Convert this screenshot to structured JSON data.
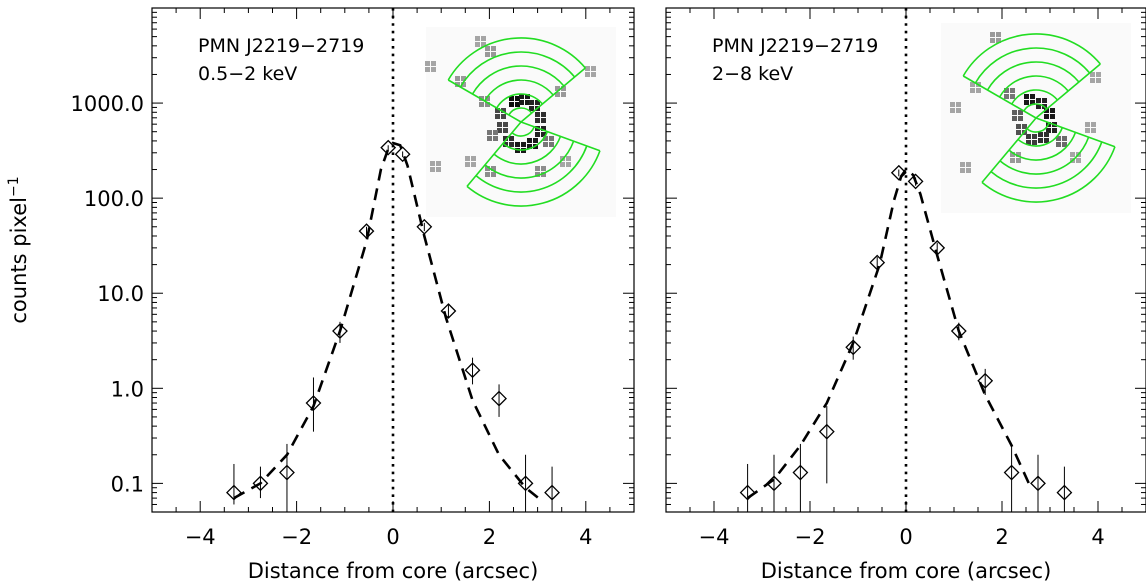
{
  "figure": {
    "ylabel_main": "counts pixel",
    "ylabel_sup": "−1",
    "line_color": "#000000",
    "overlay_color": "#22dd22"
  },
  "chart_data": [
    {
      "type": "scatter",
      "log_y": true,
      "xlabel": "Distance from core (arcsec)",
      "ylabel": "counts pixel⁻¹",
      "annotation": [
        "PMN J2219−2719",
        "0.5−2 keV"
      ],
      "xlim": [
        -5.0,
        5.0
      ],
      "ylim": [
        0.05,
        10000
      ],
      "x_ticks": [
        -4,
        -2,
        0,
        2,
        4
      ],
      "x_tick_labels": [
        "−4",
        "−2",
        "0",
        "2",
        "4"
      ],
      "y_ticks": [
        0.1,
        1.0,
        10.0,
        100.0,
        1000.0
      ],
      "y_tick_labels": [
        "0.1",
        "1.0",
        "10.0",
        "100.0",
        "1000.0"
      ],
      "core_line_x": 0,
      "series": [
        {
          "points": [
            {
              "x": -3.3,
              "y": 0.08,
              "lo": 0.06,
              "hi": 0.16
            },
            {
              "x": -2.75,
              "y": 0.1,
              "lo": 0.07,
              "hi": 0.15
            },
            {
              "x": -2.2,
              "y": 0.13,
              "lo": 0.05,
              "hi": 0.26
            },
            {
              "x": -1.65,
              "y": 0.7,
              "lo": 0.35,
              "hi": 1.3
            },
            {
              "x": -1.1,
              "y": 4.0,
              "lo": 3.0,
              "hi": 5.0
            },
            {
              "x": -0.55,
              "y": 45.0,
              "lo": 40.0,
              "hi": 50.0
            },
            {
              "x": -0.1,
              "y": 340.0,
              "lo": 320.0,
              "hi": 360.0
            },
            {
              "x": 0.2,
              "y": 290.0,
              "lo": 270.0,
              "hi": 310.0
            },
            {
              "x": 0.65,
              "y": 50.0,
              "lo": 45.0,
              "hi": 55.0
            },
            {
              "x": 1.15,
              "y": 6.5,
              "lo": 5.5,
              "hi": 7.5
            },
            {
              "x": 1.65,
              "y": 1.55,
              "lo": 1.1,
              "hi": 2.1
            },
            {
              "x": 2.2,
              "y": 0.78,
              "lo": 0.5,
              "hi": 1.1
            },
            {
              "x": 2.75,
              "y": 0.1,
              "lo": 0.05,
              "hi": 0.2
            },
            {
              "x": 3.3,
              "y": 0.08,
              "lo": 0.05,
              "hi": 0.15
            }
          ]
        },
        {
          "name": "model",
          "style": "dashed",
          "x": [
            -3.3,
            -2.75,
            -2.2,
            -1.65,
            -1.1,
            -0.55,
            -0.25,
            -0.1,
            0.0,
            0.15,
            0.3,
            0.65,
            1.1,
            1.65,
            2.2,
            2.75,
            3.1
          ],
          "y": [
            0.07,
            0.1,
            0.2,
            0.65,
            4.0,
            35.0,
            200.0,
            330.0,
            380.0,
            360.0,
            220.0,
            40.0,
            5.5,
            0.75,
            0.2,
            0.09,
            0.065
          ]
        }
      ]
    },
    {
      "type": "scatter",
      "log_y": true,
      "xlabel": "Distance from core (arcsec)",
      "ylabel": "",
      "annotation": [
        "PMN J2219−2719",
        "2−8 keV"
      ],
      "xlim": [
        -5.0,
        5.0
      ],
      "ylim": [
        0.05,
        10000
      ],
      "x_ticks": [
        -4,
        -2,
        0,
        2,
        4
      ],
      "x_tick_labels": [
        "−4",
        "−2",
        "0",
        "2",
        "4"
      ],
      "y_ticks": [
        0.1,
        1.0,
        10.0,
        100.0,
        1000.0
      ],
      "y_tick_labels": [],
      "core_line_x": 0,
      "series": [
        {
          "points": [
            {
              "x": -3.3,
              "y": 0.08,
              "lo": 0.05,
              "hi": 0.16
            },
            {
              "x": -2.75,
              "y": 0.1,
              "lo": 0.05,
              "hi": 0.2
            },
            {
              "x": -2.2,
              "y": 0.13,
              "lo": 0.05,
              "hi": 0.26
            },
            {
              "x": -1.65,
              "y": 0.35,
              "lo": 0.1,
              "hi": 0.65
            },
            {
              "x": -1.1,
              "y": 2.7,
              "lo": 2.0,
              "hi": 3.5
            },
            {
              "x": -0.6,
              "y": 21.0,
              "lo": 18.0,
              "hi": 24.0
            },
            {
              "x": -0.15,
              "y": 185.0,
              "lo": 170.0,
              "hi": 200.0
            },
            {
              "x": 0.2,
              "y": 150.0,
              "lo": 135.0,
              "hi": 165.0
            },
            {
              "x": 0.65,
              "y": 30.0,
              "lo": 26.0,
              "hi": 34.0
            },
            {
              "x": 1.1,
              "y": 4.0,
              "lo": 3.2,
              "hi": 4.9
            },
            {
              "x": 1.65,
              "y": 1.2,
              "lo": 0.85,
              "hi": 1.6
            },
            {
              "x": 2.2,
              "y": 0.13,
              "lo": 0.05,
              "hi": 0.25
            },
            {
              "x": 2.75,
              "y": 0.1,
              "lo": 0.05,
              "hi": 0.2
            },
            {
              "x": 3.3,
              "y": 0.08,
              "lo": 0.05,
              "hi": 0.15
            }
          ]
        },
        {
          "name": "model",
          "style": "dashed",
          "x": [
            -3.3,
            -2.75,
            -2.2,
            -1.65,
            -1.1,
            -0.55,
            -0.25,
            -0.1,
            0.0,
            0.15,
            0.3,
            0.65,
            1.1,
            1.65,
            2.2,
            2.6
          ],
          "y": [
            0.07,
            0.11,
            0.25,
            0.7,
            3.0,
            20.0,
            95.0,
            170.0,
            200.0,
            175.0,
            110.0,
            25.0,
            4.0,
            0.85,
            0.25,
            0.09
          ]
        }
      ]
    }
  ],
  "insets": [
    {
      "name": "image-inset-soft",
      "cx": 521,
      "cy": 122,
      "blobs": [
        {
          "dx": -6,
          "dy": -20,
          "n": 0.95
        },
        {
          "dx": 4,
          "dy": -22,
          "n": 0.9
        },
        {
          "dx": 14,
          "dy": -16,
          "n": 0.85
        },
        {
          "dx": 20,
          "dy": -4,
          "n": 0.8
        },
        {
          "dx": 20,
          "dy": 10,
          "n": 0.85
        },
        {
          "dx": 12,
          "dy": 22,
          "n": 0.9
        },
        {
          "dx": 0,
          "dy": 26,
          "n": 0.9
        },
        {
          "dx": -12,
          "dy": 20,
          "n": 0.8
        },
        {
          "dx": -18,
          "dy": 6,
          "n": 0.7
        },
        {
          "dx": -20,
          "dy": -8,
          "n": 0.7
        },
        {
          "dx": -28,
          "dy": 14,
          "n": 0.5
        },
        {
          "dx": 28,
          "dy": 20,
          "n": 0.5
        },
        {
          "dx": -36,
          "dy": -20,
          "n": 0.4
        },
        {
          "dx": 40,
          "dy": -30,
          "n": 0.35
        },
        {
          "dx": -50,
          "dy": 40,
          "n": 0.3
        },
        {
          "dx": -30,
          "dy": -70,
          "n": 0.35
        },
        {
          "dx": -40,
          "dy": -80,
          "n": 0.3
        },
        {
          "dx": 70,
          "dy": -50,
          "n": 0.3
        },
        {
          "dx": -90,
          "dy": -55,
          "n": 0.3
        },
        {
          "dx": -85,
          "dy": 45,
          "n": 0.3
        },
        {
          "dx": -30,
          "dy": 50,
          "n": 0.4
        },
        {
          "dx": 20,
          "dy": 50,
          "n": 0.4
        },
        {
          "dx": 45,
          "dy": 40,
          "n": 0.3
        },
        {
          "dx": -60,
          "dy": -40,
          "n": 0.35
        }
      ]
    },
    {
      "name": "image-inset-hard",
      "cx": 1036,
      "cy": 118,
      "blobs": [
        {
          "dx": -6,
          "dy": -18,
          "n": 0.9
        },
        {
          "dx": 6,
          "dy": -14,
          "n": 0.85
        },
        {
          "dx": 14,
          "dy": -4,
          "n": 0.9
        },
        {
          "dx": 16,
          "dy": 10,
          "n": 0.85
        },
        {
          "dx": 8,
          "dy": 20,
          "n": 0.8
        },
        {
          "dx": -4,
          "dy": 22,
          "n": 0.75
        },
        {
          "dx": -14,
          "dy": 12,
          "n": 0.65
        },
        {
          "dx": -18,
          "dy": -2,
          "n": 0.6
        },
        {
          "dx": 26,
          "dy": 24,
          "n": 0.55
        },
        {
          "dx": -26,
          "dy": -24,
          "n": 0.5
        },
        {
          "dx": -40,
          "dy": -80,
          "n": 0.35
        },
        {
          "dx": -60,
          "dy": -30,
          "n": 0.3
        },
        {
          "dx": 60,
          "dy": -40,
          "n": 0.3
        },
        {
          "dx": -70,
          "dy": 50,
          "n": 0.3
        },
        {
          "dx": 40,
          "dy": 40,
          "n": 0.3
        },
        {
          "dx": -80,
          "dy": -10,
          "n": 0.3
        },
        {
          "dx": 55,
          "dy": 10,
          "n": 0.3
        },
        {
          "dx": -20,
          "dy": 40,
          "n": 0.35
        }
      ]
    }
  ]
}
